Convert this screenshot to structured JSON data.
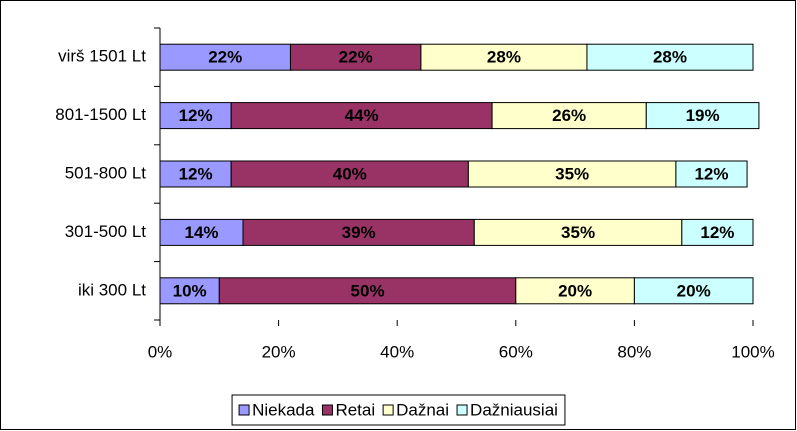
{
  "chart_data": {
    "type": "stacked_barh",
    "categories": [
      "virš 1501 Lt",
      "801-1500 Lt",
      "501-800 Lt",
      "301-500 Lt",
      "iki 300 Lt"
    ],
    "series": [
      {
        "name": "Niekada",
        "color": "#9999ff",
        "values": [
          22,
          12,
          12,
          14,
          10
        ],
        "value_labels": [
          "22%",
          "12%",
          "12%",
          "14%",
          "10%"
        ]
      },
      {
        "name": "Retai",
        "color": "#993366",
        "values": [
          22,
          44,
          40,
          39,
          50
        ],
        "value_labels": [
          "22%",
          "44%",
          "40%",
          "39%",
          "50%"
        ]
      },
      {
        "name": "Dažnai",
        "color": "#ffffcc",
        "values": [
          28,
          26,
          35,
          35,
          20
        ],
        "value_labels": [
          "28%",
          "26%",
          "35%",
          "35%",
          "20%"
        ]
      },
      {
        "name": "Dažniausiai",
        "color": "#ccffff",
        "values": [
          28,
          19,
          12,
          12,
          20
        ],
        "value_labels": [
          "28%",
          "19%",
          "12%",
          "12%",
          "20%"
        ]
      }
    ],
    "xlim": [
      0,
      100
    ],
    "xticks": [
      {
        "value": 0,
        "label": "0%"
      },
      {
        "value": 20,
        "label": "20%"
      },
      {
        "value": 40,
        "label": "40%"
      },
      {
        "value": 60,
        "label": "60%"
      },
      {
        "value": 80,
        "label": "80%"
      },
      {
        "value": 100,
        "label": "100%"
      }
    ],
    "legend": "bottom"
  }
}
